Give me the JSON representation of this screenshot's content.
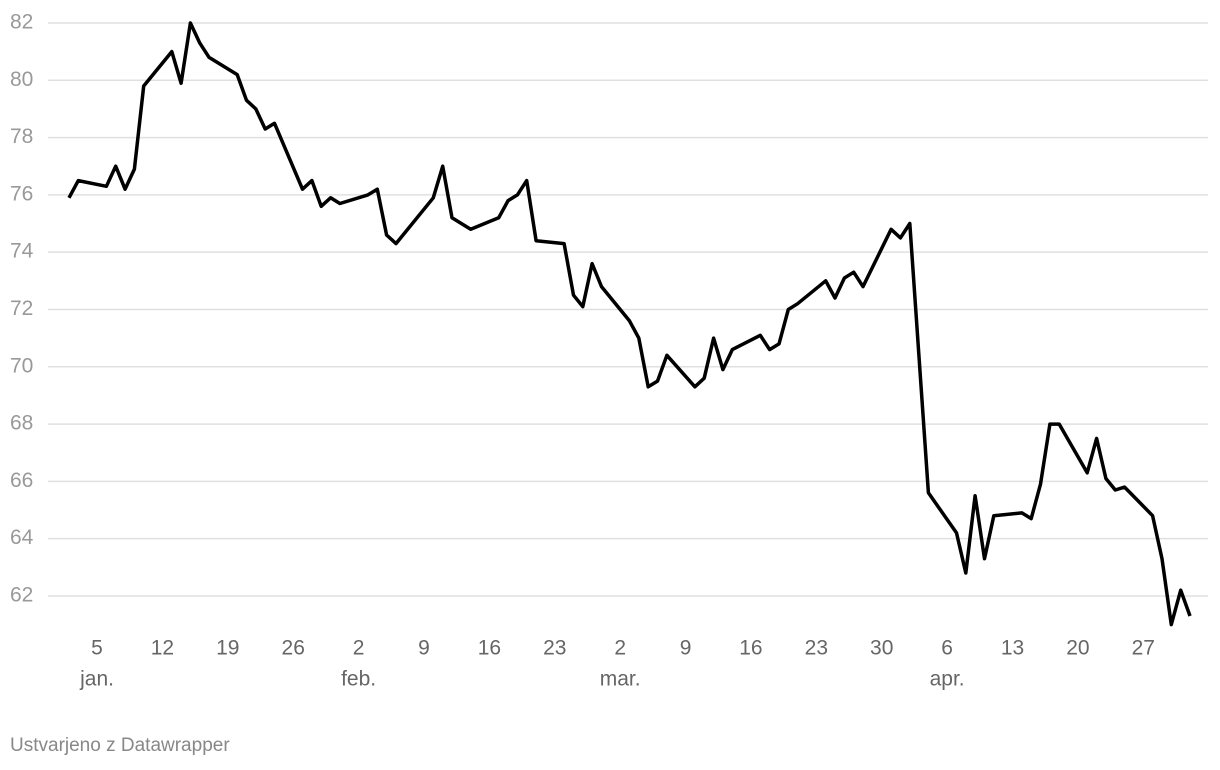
{
  "chart_data": {
    "type": "line",
    "color": "#000000",
    "grid": true,
    "x": [
      2,
      3,
      6,
      7,
      8,
      9,
      10,
      13,
      14,
      15,
      16,
      17,
      20,
      21,
      22,
      23,
      24,
      27,
      28,
      29,
      30,
      31,
      34,
      35,
      36,
      37,
      41,
      42,
      43,
      44,
      45,
      48,
      49,
      50,
      51,
      52,
      55,
      56,
      57,
      58,
      59,
      62,
      63,
      64,
      65,
      66,
      69,
      70,
      71,
      72,
      73,
      76,
      77,
      78,
      79,
      80,
      83,
      84,
      85,
      86,
      87,
      90,
      91,
      92,
      94,
      97,
      98,
      99,
      100,
      101,
      104,
      105,
      106,
      107,
      108,
      111,
      112,
      113,
      114,
      115,
      118,
      119,
      120,
      121,
      122
    ],
    "values": [
      75.9,
      76.5,
      76.3,
      77.0,
      76.2,
      76.9,
      79.8,
      81.0,
      79.9,
      82.0,
      81.3,
      80.8,
      80.2,
      79.3,
      79.0,
      78.3,
      78.5,
      76.2,
      76.5,
      75.6,
      75.9,
      75.7,
      76.0,
      76.2,
      74.6,
      74.3,
      75.9,
      77.0,
      75.2,
      75.0,
      74.8,
      75.2,
      75.8,
      76.0,
      76.5,
      74.4,
      74.3,
      72.5,
      72.1,
      73.6,
      72.8,
      71.6,
      71.0,
      69.3,
      69.5,
      70.4,
      69.3,
      69.6,
      71.0,
      69.9,
      70.6,
      71.1,
      70.6,
      70.8,
      72.0,
      72.2,
      73.0,
      72.4,
      73.1,
      73.3,
      72.8,
      74.8,
      74.5,
      75.0,
      65.6,
      64.2,
      62.8,
      65.5,
      63.3,
      64.8,
      64.9,
      64.7,
      65.9,
      68.0,
      68.0,
      66.3,
      67.5,
      66.1,
      65.7,
      65.8,
      64.8,
      63.3,
      61.0,
      62.2,
      61.3
    ],
    "xlim": [
      2,
      122
    ],
    "xticks": [
      5,
      12,
      19,
      26,
      {
        "value": 33,
        "label": "2"
      },
      {
        "value": 40,
        "label": "9"
      },
      {
        "value": 47,
        "label": "16"
      },
      {
        "value": 54,
        "label": "23"
      },
      {
        "value": 61,
        "label": "2"
      },
      {
        "value": 68,
        "label": "9"
      },
      {
        "value": 75,
        "label": "16"
      },
      {
        "value": 82,
        "label": "23"
      },
      {
        "value": 89,
        "label": "30"
      },
      {
        "value": 96,
        "label": "6"
      },
      {
        "value": 103,
        "label": "13"
      },
      {
        "value": 110,
        "label": "20"
      },
      {
        "value": 117,
        "label": "27"
      }
    ],
    "month_labels": [
      {
        "value": 5,
        "label": "jan."
      },
      {
        "value": 33,
        "label": "feb."
      },
      {
        "value": 61,
        "label": "mar."
      },
      {
        "value": 96,
        "label": "apr."
      }
    ],
    "ylim": [
      61,
      82
    ],
    "yticks": [
      62,
      64,
      66,
      68,
      70,
      72,
      74,
      76,
      78,
      80,
      82
    ],
    "credit": "Ustvarjeno z Datawrapper"
  }
}
